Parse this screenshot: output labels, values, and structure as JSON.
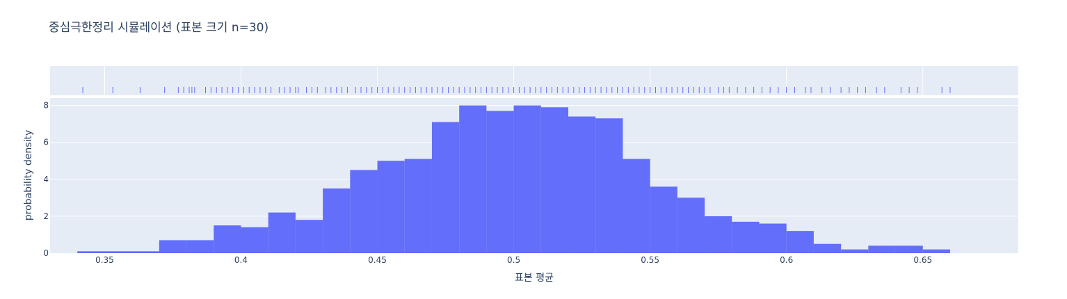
{
  "chart_data": {
    "type": "bar",
    "title": "중심극한정리 시뮬레이션 (표본 크기 n=30)",
    "xlabel": "표본 평균",
    "ylabel": "probability density",
    "xlim": [
      0.33,
      0.685
    ],
    "ylim": [
      0,
      8.4
    ],
    "x_ticks": [
      0.35,
      0.4,
      0.45,
      0.5,
      0.55,
      0.6,
      0.65
    ],
    "x_tick_labels": [
      "0.35",
      "0.4",
      "0.45",
      "0.5",
      "0.55",
      "0.6",
      "0.65"
    ],
    "y_ticks": [
      0,
      2,
      4,
      6,
      8
    ],
    "y_tick_labels": [
      "0",
      "2",
      "4",
      "6",
      "8"
    ],
    "grid": true,
    "bin_width": 0.01,
    "bins": [
      {
        "x0": 0.34,
        "x1": 0.35,
        "y": 0.1
      },
      {
        "x0": 0.35,
        "x1": 0.36,
        "y": 0.1
      },
      {
        "x0": 0.36,
        "x1": 0.37,
        "y": 0.1
      },
      {
        "x0": 0.37,
        "x1": 0.38,
        "y": 0.7
      },
      {
        "x0": 0.38,
        "x1": 0.39,
        "y": 0.7
      },
      {
        "x0": 0.39,
        "x1": 0.4,
        "y": 1.5
      },
      {
        "x0": 0.4,
        "x1": 0.41,
        "y": 1.4
      },
      {
        "x0": 0.41,
        "x1": 0.42,
        "y": 2.2
      },
      {
        "x0": 0.42,
        "x1": 0.43,
        "y": 1.8
      },
      {
        "x0": 0.43,
        "x1": 0.44,
        "y": 3.5
      },
      {
        "x0": 0.44,
        "x1": 0.45,
        "y": 4.5
      },
      {
        "x0": 0.45,
        "x1": 0.46,
        "y": 5.0
      },
      {
        "x0": 0.46,
        "x1": 0.47,
        "y": 5.1
      },
      {
        "x0": 0.47,
        "x1": 0.48,
        "y": 7.1
      },
      {
        "x0": 0.48,
        "x1": 0.49,
        "y": 8.0
      },
      {
        "x0": 0.49,
        "x1": 0.5,
        "y": 7.7
      },
      {
        "x0": 0.5,
        "x1": 0.51,
        "y": 8.0
      },
      {
        "x0": 0.51,
        "x1": 0.52,
        "y": 7.9
      },
      {
        "x0": 0.52,
        "x1": 0.53,
        "y": 7.4
      },
      {
        "x0": 0.53,
        "x1": 0.54,
        "y": 7.3
      },
      {
        "x0": 0.54,
        "x1": 0.55,
        "y": 5.1
      },
      {
        "x0": 0.55,
        "x1": 0.56,
        "y": 3.6
      },
      {
        "x0": 0.56,
        "x1": 0.57,
        "y": 3.0
      },
      {
        "x0": 0.57,
        "x1": 0.58,
        "y": 2.0
      },
      {
        "x0": 0.58,
        "x1": 0.59,
        "y": 1.7
      },
      {
        "x0": 0.59,
        "x1": 0.6,
        "y": 1.6
      },
      {
        "x0": 0.6,
        "x1": 0.61,
        "y": 1.2
      },
      {
        "x0": 0.61,
        "x1": 0.62,
        "y": 0.5
      },
      {
        "x0": 0.62,
        "x1": 0.63,
        "y": 0.2
      },
      {
        "x0": 0.63,
        "x1": 0.64,
        "y": 0.4
      },
      {
        "x0": 0.64,
        "x1": 0.65,
        "y": 0.4
      },
      {
        "x0": 0.65,
        "x1": 0.66,
        "y": 0.2
      }
    ],
    "rug": [
      0.342,
      0.353,
      0.363,
      0.372,
      0.377,
      0.379,
      0.381,
      0.382,
      0.383,
      0.387,
      0.389,
      0.391,
      0.393,
      0.395,
      0.397,
      0.399,
      0.401,
      0.403,
      0.405,
      0.407,
      0.409,
      0.411,
      0.414,
      0.416,
      0.418,
      0.42,
      0.421,
      0.424,
      0.426,
      0.428,
      0.431,
      0.433,
      0.435,
      0.437,
      0.439,
      0.442,
      0.444,
      0.446,
      0.448,
      0.45,
      0.452,
      0.454,
      0.456,
      0.458,
      0.46,
      0.462,
      0.464,
      0.466,
      0.468,
      0.47,
      0.472,
      0.474,
      0.476,
      0.478,
      0.48,
      0.482,
      0.484,
      0.486,
      0.488,
      0.49,
      0.492,
      0.494,
      0.496,
      0.498,
      0.5,
      0.502,
      0.504,
      0.506,
      0.508,
      0.51,
      0.512,
      0.514,
      0.516,
      0.518,
      0.52,
      0.522,
      0.524,
      0.526,
      0.528,
      0.53,
      0.532,
      0.534,
      0.536,
      0.538,
      0.54,
      0.542,
      0.544,
      0.546,
      0.548,
      0.55,
      0.552,
      0.554,
      0.556,
      0.558,
      0.56,
      0.562,
      0.564,
      0.566,
      0.568,
      0.57,
      0.572,
      0.575,
      0.577,
      0.579,
      0.582,
      0.585,
      0.588,
      0.591,
      0.594,
      0.597,
      0.6,
      0.603,
      0.607,
      0.609,
      0.613,
      0.616,
      0.62,
      0.623,
      0.626,
      0.629,
      0.633,
      0.636,
      0.642,
      0.645,
      0.648,
      0.657,
      0.66
    ],
    "bar_color": "#636efa",
    "plot_bg": "#e5ecf6",
    "grid_color": "#ffffff"
  }
}
